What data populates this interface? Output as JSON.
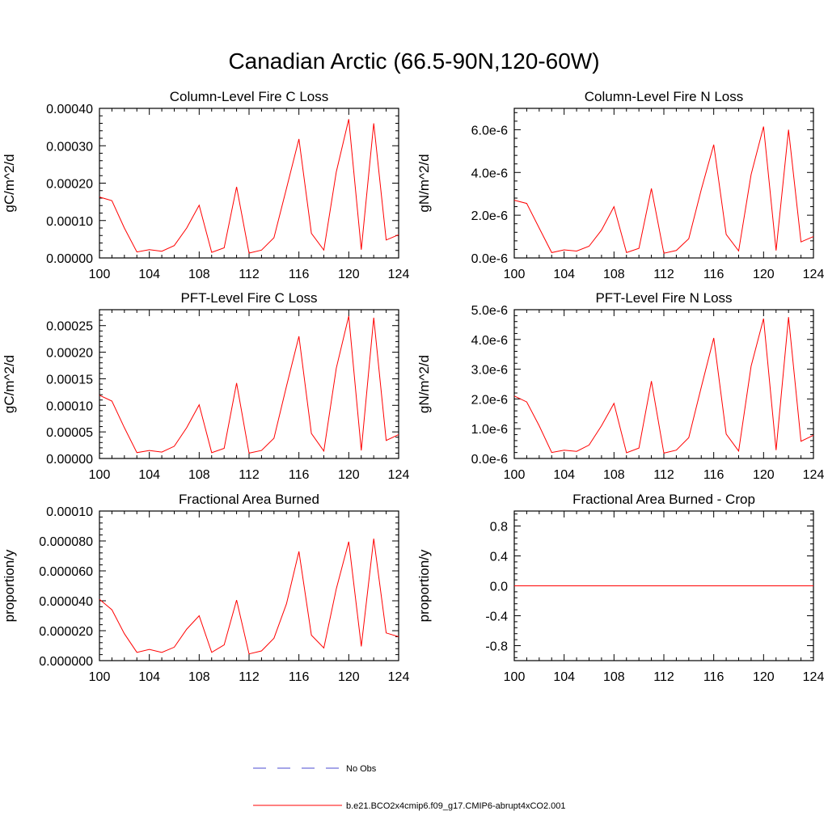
{
  "title": "Canadian Arctic (66.5-90N,120-60W)",
  "colors": {
    "model": "#ff0000",
    "obs": "#4b4bd0",
    "axis": "#000000"
  },
  "legend": [
    {
      "label": "No Obs",
      "style": "dashed",
      "color": "#4b4bd0"
    },
    {
      "label": "b.e21.BCO2x4cmip6.f09_g17.CMIP6-abrupt4xCO2.001",
      "style": "solid",
      "color": "#ff0000"
    }
  ],
  "chart_data": [
    {
      "type": "line",
      "title": "Column-Level Fire C Loss",
      "ylabel": "gC/m^2/d",
      "xlim": [
        100,
        124
      ],
      "ylim": [
        0,
        0.0004
      ],
      "xticks": [
        100,
        104,
        108,
        112,
        116,
        120,
        124
      ],
      "yticks": [
        0,
        0.0001,
        0.0002,
        0.0003,
        0.0004
      ],
      "ytick_labels": [
        "0.00000",
        "0.00010",
        "0.00020",
        "0.00030",
        "0.00040"
      ],
      "x": [
        100,
        101,
        102,
        103,
        104,
        105,
        106,
        107,
        108,
        109,
        110,
        111,
        112,
        113,
        114,
        115,
        116,
        117,
        118,
        119,
        120,
        121,
        122,
        123,
        124
      ],
      "series": [
        {
          "name": "b.e21.BCO2x4cmip6.f09_g17.CMIP6-abrupt4xCO2.001",
          "values": [
            0.000163,
            0.000153,
            8e-05,
            1.6e-05,
            2.2e-05,
            1.8e-05,
            3.3e-05,
            8e-05,
            0.000141,
            1.5e-05,
            2.7e-05,
            0.00019,
            1.3e-05,
            2.1e-05,
            5.4e-05,
            0.000186,
            0.000318,
            6.6e-05,
            2.1e-05,
            0.00023,
            0.000371,
            2.2e-05,
            0.00036,
            4.8e-05,
            6.2e-05
          ]
        }
      ]
    },
    {
      "type": "line",
      "title": "Column-Level Fire N Loss",
      "ylabel": "gN/m^2/d",
      "xlim": [
        100,
        124
      ],
      "ylim": [
        0,
        7e-06
      ],
      "xticks": [
        100,
        104,
        108,
        112,
        116,
        120,
        124
      ],
      "yticks": [
        0,
        2e-06,
        4e-06,
        6e-06
      ],
      "ytick_labels": [
        "0.0e-6",
        "2.0e-6",
        "4.0e-6",
        "6.0e-6"
      ],
      "x": [
        100,
        101,
        102,
        103,
        104,
        105,
        106,
        107,
        108,
        109,
        110,
        111,
        112,
        113,
        114,
        115,
        116,
        117,
        118,
        119,
        120,
        121,
        122,
        123,
        124
      ],
      "series": [
        {
          "name": "b.e21.BCO2x4cmip6.f09_g17.CMIP6-abrupt4xCO2.001",
          "values": [
            2.7e-06,
            2.55e-06,
            1.4e-06,
            2.5e-07,
            3.8e-07,
            3.2e-07,
            5.5e-07,
            1.3e-06,
            2.4e-06,
            2.5e-07,
            4.5e-07,
            3.25e-06,
            2.2e-07,
            3.5e-07,
            9e-07,
            3.2e-06,
            5.3e-06,
            1.1e-06,
            3.3e-07,
            3.9e-06,
            6.15e-06,
            3.5e-07,
            6e-06,
            7.5e-07,
            1e-06
          ]
        }
      ]
    },
    {
      "type": "line",
      "title": "PFT-Level Fire C Loss",
      "ylabel": "gC/m^2/d",
      "xlim": [
        100,
        124
      ],
      "ylim": [
        0,
        0.00028
      ],
      "xticks": [
        100,
        104,
        108,
        112,
        116,
        120,
        124
      ],
      "yticks": [
        0,
        5e-05,
        0.0001,
        0.00015,
        0.0002,
        0.00025
      ],
      "ytick_labels": [
        "0.00000",
        "0.00005",
        "0.00010",
        "0.00015",
        "0.00020",
        "0.00025"
      ],
      "x": [
        100,
        101,
        102,
        103,
        104,
        105,
        106,
        107,
        108,
        109,
        110,
        111,
        112,
        113,
        114,
        115,
        116,
        117,
        118,
        119,
        120,
        121,
        122,
        123,
        124
      ],
      "series": [
        {
          "name": "b.e21.BCO2x4cmip6.f09_g17.CMIP6-abrupt4xCO2.001",
          "values": [
            0.000119,
            0.000108,
            5.8e-05,
            1.1e-05,
            1.5e-05,
            1.2e-05,
            2.3e-05,
            5.8e-05,
            0.000101,
            1.1e-05,
            1.9e-05,
            0.000142,
            1e-05,
            1.5e-05,
            3.8e-05,
            0.000136,
            0.00023,
            4.7e-05,
            1.4e-05,
            0.00017,
            0.000268,
            1.5e-05,
            0.000265,
            3.4e-05,
            4.5e-05
          ]
        }
      ]
    },
    {
      "type": "line",
      "title": "PFT-Level Fire N Loss",
      "ylabel": "gN/m^2/d",
      "xlim": [
        100,
        124
      ],
      "ylim": [
        0,
        5e-06
      ],
      "xticks": [
        100,
        104,
        108,
        112,
        116,
        120,
        124
      ],
      "yticks": [
        0,
        1e-06,
        2e-06,
        3e-06,
        4e-06,
        5e-06
      ],
      "ytick_labels": [
        "0.0e-6",
        "1.0e-6",
        "2.0e-6",
        "3.0e-6",
        "4.0e-6",
        "5.0e-6"
      ],
      "x": [
        100,
        101,
        102,
        103,
        104,
        105,
        106,
        107,
        108,
        109,
        110,
        111,
        112,
        113,
        114,
        115,
        116,
        117,
        118,
        119,
        120,
        121,
        122,
        123,
        124
      ],
      "series": [
        {
          "name": "b.e21.BCO2x4cmip6.f09_g17.CMIP6-abrupt4xCO2.001",
          "values": [
            2.1e-06,
            1.9e-06,
            1.1e-06,
            2e-07,
            2.8e-07,
            2.4e-07,
            4.5e-07,
            1.1e-06,
            1.85e-06,
            1.9e-07,
            3.5e-07,
            2.6e-06,
            1.8e-07,
            2.8e-07,
            7e-07,
            2.4e-06,
            4.05e-06,
            8.2e-07,
            2.5e-07,
            3.1e-06,
            4.7e-06,
            2.8e-07,
            4.75e-06,
            5.8e-07,
            7.8e-07
          ]
        }
      ]
    },
    {
      "type": "line",
      "title": "Fractional Area Burned",
      "ylabel": "proportion/y",
      "xlim": [
        100,
        124
      ],
      "ylim": [
        0,
        0.0001
      ],
      "xticks": [
        100,
        104,
        108,
        112,
        116,
        120,
        124
      ],
      "yticks": [
        0,
        2e-05,
        4e-05,
        6e-05,
        8e-05,
        0.0001
      ],
      "ytick_labels": [
        "0.000000",
        "0.000020",
        "0.000040",
        "0.000060",
        "0.000080",
        "0.00010"
      ],
      "x": [
        100,
        101,
        102,
        103,
        104,
        105,
        106,
        107,
        108,
        109,
        110,
        111,
        112,
        113,
        114,
        115,
        116,
        117,
        118,
        119,
        120,
        121,
        122,
        123,
        124
      ],
      "series": [
        {
          "name": "b.e21.BCO2x4cmip6.f09_g17.CMIP6-abrupt4xCO2.001",
          "values": [
            4.1e-05,
            3.4e-05,
            1.8e-05,
            5.5e-06,
            7.5e-06,
            5.5e-06,
            9e-06,
            2.1e-05,
            3e-05,
            5.5e-06,
            1.05e-05,
            4.05e-05,
            4.5e-06,
            6.5e-06,
            1.5e-05,
            3.8e-05,
            7.3e-05,
            1.7e-05,
            8.5e-06,
            4.8e-05,
            7.95e-05,
            9.5e-06,
            8.15e-05,
            1.85e-05,
            1.6e-05
          ]
        }
      ]
    },
    {
      "type": "line",
      "title": "Fractional Area Burned - Crop",
      "ylabel": "proportion/y",
      "xlim": [
        100,
        124
      ],
      "ylim": [
        -1,
        1
      ],
      "xticks": [
        100,
        104,
        108,
        112,
        116,
        120,
        124
      ],
      "yticks": [
        -0.8,
        -0.4,
        0,
        0.4,
        0.8
      ],
      "ytick_labels": [
        "-0.8",
        "-0.4",
        "0.0",
        "0.4",
        "0.8"
      ],
      "x": [
        100,
        101,
        102,
        103,
        104,
        105,
        106,
        107,
        108,
        109,
        110,
        111,
        112,
        113,
        114,
        115,
        116,
        117,
        118,
        119,
        120,
        121,
        122,
        123,
        124
      ],
      "series": [
        {
          "name": "b.e21.BCO2x4cmip6.f09_g17.CMIP6-abrupt4xCO2.001",
          "values": [
            0,
            0,
            0,
            0,
            0,
            0,
            0,
            0,
            0,
            0,
            0,
            0,
            0,
            0,
            0,
            0,
            0,
            0,
            0,
            0,
            0,
            0,
            0,
            0,
            0
          ]
        }
      ]
    }
  ]
}
